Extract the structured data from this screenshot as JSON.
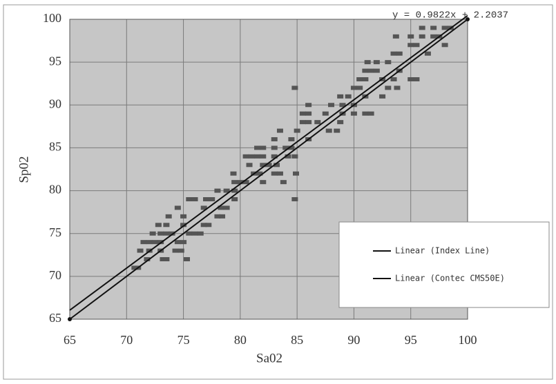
{
  "chart_data": {
    "type": "scatter",
    "annotation": "y = 0.9822x + 2.2037",
    "x_label": "Sa02",
    "y_label": "Sp02",
    "xlim": [
      65,
      100
    ],
    "ylim": [
      65,
      100
    ],
    "xticks": [
      65,
      70,
      75,
      80,
      85,
      90,
      95,
      100
    ],
    "yticks": [
      65,
      70,
      75,
      80,
      85,
      90,
      95,
      100
    ],
    "grid": true,
    "series": [
      {
        "mode": "markers",
        "color": "#555555",
        "x": [
          70.7,
          71.0,
          71.8,
          73.2,
          73.5,
          75.3,
          71.2,
          72.0,
          73.0,
          74.3,
          74.8,
          71.5,
          72.0,
          72.5,
          73.0,
          74.5,
          75.0,
          72.3,
          73.0,
          73.5,
          74.0,
          75.5,
          76.0,
          76.5,
          72.8,
          73.5,
          75.0,
          76.8,
          77.2,
          73.7,
          75.0,
          78.0,
          78.4,
          74.5,
          76.8,
          78.3,
          78.8,
          75.5,
          76.0,
          77.0,
          77.5,
          79.5,
          84.8,
          78.0,
          78.8,
          79.5,
          79.5,
          80.0,
          80.5,
          82.0,
          83.8,
          79.4,
          81.2,
          81.7,
          83.0,
          83.5,
          84.9,
          80.8,
          82.0,
          82.5,
          83.2,
          80.5,
          81.0,
          81.5,
          82.0,
          83.0,
          84.2,
          84.8,
          81.5,
          82.0,
          83.0,
          84.0,
          84.5,
          83.0,
          84.5,
          86.0,
          83.5,
          85.0,
          87.8,
          88.5,
          85.5,
          86.0,
          86.8,
          88.8,
          85.5,
          86.0,
          87.5,
          89.0,
          90.0,
          91.0,
          91.5,
          86.0,
          88.0,
          89.0,
          90.0,
          88.8,
          89.5,
          91.0,
          92.5,
          84.8,
          90.0,
          90.5,
          93.0,
          93.8,
          90.5,
          91.0,
          92.5,
          93.5,
          95.0,
          95.5,
          91.0,
          91.5,
          92.0,
          94.0,
          91.2,
          92.0,
          93.0,
          93.5,
          94.0,
          96.5,
          95.0,
          95.5,
          98.0,
          93.7,
          95.0,
          96.0,
          97.0,
          97.5,
          96.0,
          97.0,
          98.0,
          98.5
        ],
        "values": [
          71,
          71,
          72,
          72,
          72,
          72,
          73,
          73,
          73,
          73,
          73,
          74,
          74,
          74,
          74,
          74,
          74,
          75,
          75,
          75,
          75,
          75,
          75,
          75,
          76,
          76,
          76,
          76,
          76,
          77,
          77,
          77,
          77,
          78,
          78,
          78,
          78,
          79,
          79,
          79,
          79,
          79,
          79,
          80,
          80,
          80,
          81,
          81,
          81,
          81,
          81,
          82,
          82,
          82,
          82,
          82,
          82,
          83,
          83,
          83,
          83,
          84,
          84,
          84,
          84,
          84,
          84,
          84,
          85,
          85,
          85,
          85,
          85,
          86,
          86,
          86,
          87,
          87,
          87,
          87,
          88,
          88,
          88,
          88,
          89,
          89,
          89,
          89,
          89,
          89,
          89,
          90,
          90,
          90,
          90,
          91,
          91,
          91,
          91,
          92,
          92,
          92,
          92,
          92,
          93,
          93,
          93,
          93,
          93,
          93,
          94,
          94,
          94,
          94,
          95,
          95,
          95,
          96,
          96,
          96,
          97,
          97,
          97,
          98,
          98,
          98,
          98,
          98,
          99,
          99,
          99,
          99
        ]
      },
      {
        "mode": "line",
        "name": "Linear (Index Line)",
        "color": "#111111",
        "x": [
          65,
          100
        ],
        "values": [
          65,
          100
        ]
      },
      {
        "mode": "line",
        "name": "Linear (Contec CMS50E)",
        "color": "#111111",
        "x": [
          65,
          100
        ],
        "values": [
          66.05,
          100.43
        ]
      }
    ]
  }
}
